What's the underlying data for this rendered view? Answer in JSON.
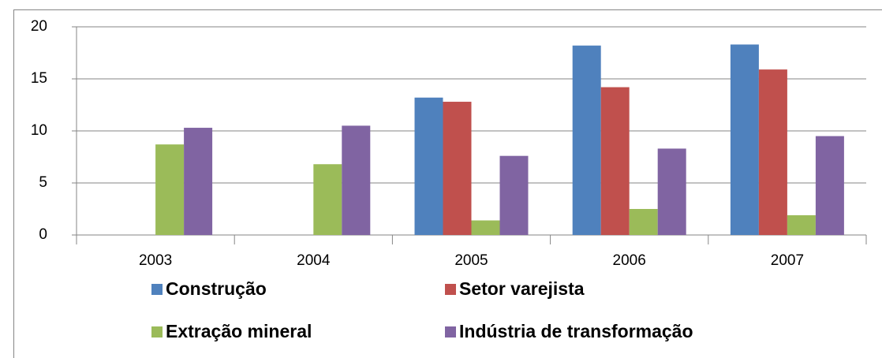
{
  "chart_data": {
    "type": "bar",
    "categories": [
      "2003",
      "2004",
      "2005",
      "2006",
      "2007"
    ],
    "series": [
      {
        "name": "Construção",
        "color": "#4f81bd",
        "values": [
          null,
          null,
          13.2,
          18.2,
          18.3
        ]
      },
      {
        "name": "Setor varejista",
        "color": "#c0504d",
        "values": [
          null,
          null,
          12.8,
          14.2,
          15.9
        ]
      },
      {
        "name": "Extração mineral",
        "color": "#9bbb59",
        "values": [
          8.7,
          6.8,
          1.4,
          2.5,
          1.9
        ]
      },
      {
        "name": "Indústria de transformação",
        "color": "#8064a2",
        "values": [
          10.3,
          10.5,
          7.6,
          8.3,
          9.5
        ]
      }
    ],
    "ylim": [
      0,
      20
    ],
    "yticks": [
      0,
      5,
      10,
      15,
      20
    ],
    "grid": true,
    "legend": "bottom"
  }
}
